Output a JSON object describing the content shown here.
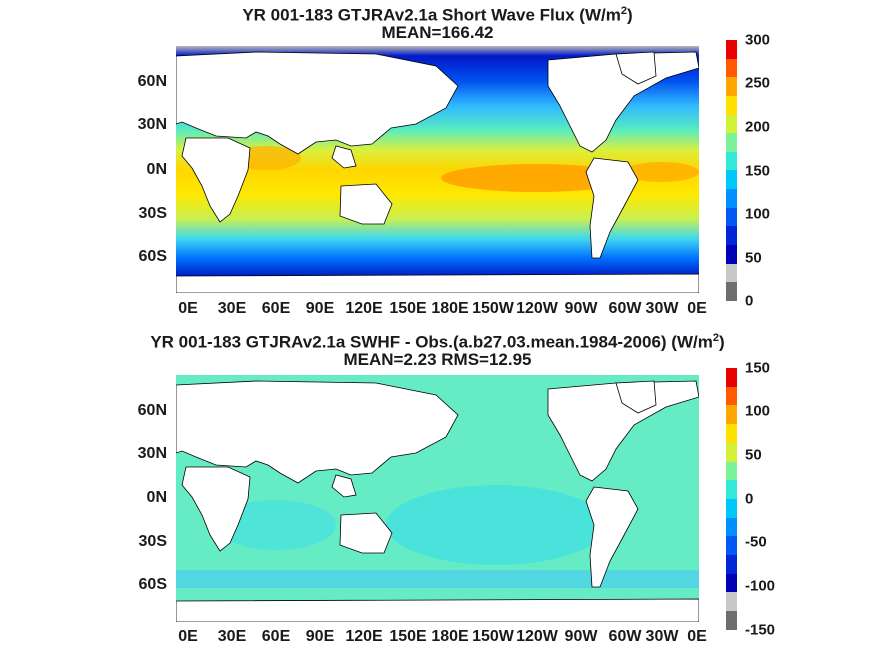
{
  "top_panel": {
    "title_line1": "YR 001-183 GTJRAv2.1a  Short Wave Flux (W/m",
    "title_sup": "2",
    "title_end": ")",
    "title_line2": "MEAN=166.42",
    "lat_labels": [
      "60N",
      "30N",
      "0N",
      "30S",
      "60S"
    ],
    "lon_labels": [
      "0E",
      "30E",
      "60E",
      "90E",
      "120E",
      "150E",
      "180E",
      "150W",
      "120W",
      "90W",
      "60W",
      "30W",
      "0E"
    ],
    "colorbar": {
      "ticks": [
        "300",
        "250",
        "200",
        "150",
        "100",
        "50",
        "0"
      ],
      "colors": [
        "#e80000",
        "#ff5a00",
        "#ffa600",
        "#ffe000",
        "#d4f13a",
        "#7cf29a",
        "#33e8d7",
        "#00c8ff",
        "#0090ff",
        "#0059f4",
        "#0026d9",
        "#0000b4",
        "#c8c8c8",
        "#6e6e6e"
      ]
    }
  },
  "bottom_panel": {
    "title_line1": "YR 001-183 GTJRAv2.1a SWHF - Obs.(a.b27.03.mean.1984-2006) (W/m",
    "title_sup": "2",
    "title_end": ")",
    "title_line2": "MEAN=2.23 RMS=12.95",
    "lat_labels": [
      "60N",
      "30N",
      "0N",
      "30S",
      "60S"
    ],
    "lon_labels": [
      "0E",
      "30E",
      "60E",
      "90E",
      "120E",
      "150E",
      "180E",
      "150W",
      "120W",
      "90W",
      "60W",
      "30W",
      "0E"
    ],
    "colorbar": {
      "ticks": [
        "150",
        "100",
        "50",
        "0",
        "-50",
        "-100",
        "-150"
      ],
      "colors": [
        "#e80000",
        "#ff5a00",
        "#ffa600",
        "#ffe000",
        "#d4f13a",
        "#7cf29a",
        "#33e8d7",
        "#00c8ff",
        "#0090ff",
        "#0059f4",
        "#0026d9",
        "#0000b4",
        "#c8c8c8",
        "#6e6e6e"
      ]
    }
  }
}
